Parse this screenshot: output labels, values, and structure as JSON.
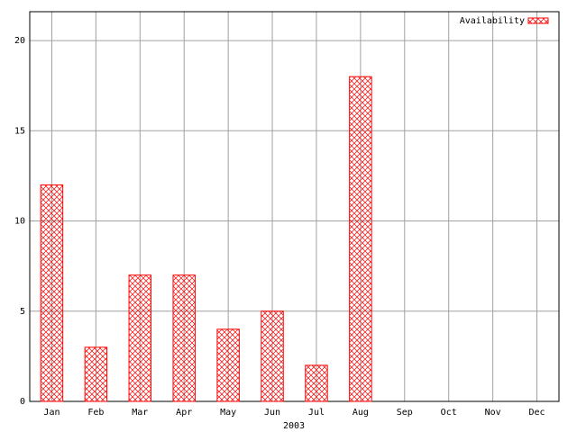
{
  "chart_data": {
    "type": "bar",
    "xlabel": "2003",
    "categories": [
      "Jan",
      "Feb",
      "Mar",
      "Apr",
      "May",
      "Jun",
      "Jul",
      "Aug",
      "Sep",
      "Oct",
      "Nov",
      "Dec"
    ],
    "series": [
      {
        "name": "Availability",
        "color": "#ff0000",
        "values": [
          12,
          3,
          7,
          7,
          4,
          5,
          2,
          18,
          0,
          0,
          0,
          0
        ]
      }
    ],
    "ylim": [
      0,
      21.6
    ],
    "yticks": [
      0,
      5,
      10,
      15,
      20
    ],
    "grid": true,
    "legend": "top-right"
  }
}
